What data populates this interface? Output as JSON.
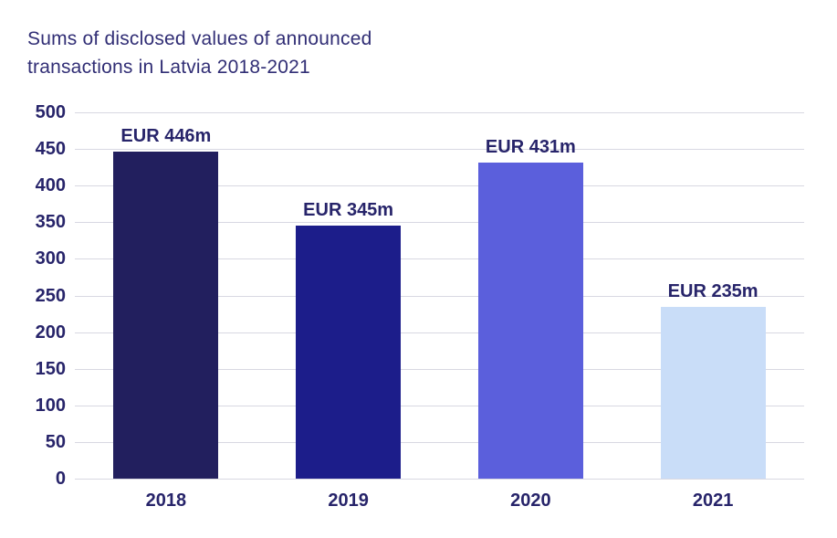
{
  "title": {
    "lines": [
      "Sums of disclosed values of announced",
      "transactions in Latvia 2018-2021"
    ]
  },
  "chart_data": {
    "type": "bar",
    "title": "Sums of disclosed values of announced transactions in Latvia 2018-2021",
    "categories": [
      "2018",
      "2019",
      "2020",
      "2021"
    ],
    "values": [
      446,
      345,
      431,
      235
    ],
    "bar_labels": [
      "EUR 446m",
      "EUR 345m",
      "EUR 431m",
      "EUR 235m"
    ],
    "bar_colors": [
      "#221f5e",
      "#1c1d8a",
      "#5b5fdc",
      "#c9ddf8"
    ],
    "xlabel": "",
    "ylabel": "",
    "ylim": [
      0,
      500
    ],
    "yticks": [
      0,
      50,
      100,
      150,
      200,
      250,
      300,
      350,
      400,
      450,
      500
    ],
    "grid": true,
    "legend": "none",
    "colors": {
      "gridline": "#d8d8e2",
      "axis_label": "#27246a",
      "title": "#312e75",
      "background": "#ffffff"
    }
  }
}
